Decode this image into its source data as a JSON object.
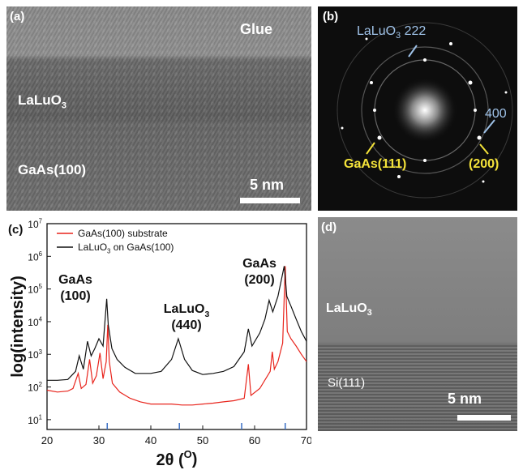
{
  "panel_a": {
    "tag": "(a)",
    "glue": "Glue",
    "layer": "LaLuO",
    "layer_sub": "3",
    "substrate": "GaAs(100)",
    "scale": "5 nm"
  },
  "panel_b": {
    "tag": "(b)",
    "lalu": "LaLuO",
    "lalu_sub": "3",
    "lalu_idx": "222",
    "i400": "400",
    "gaas111": "GaAs(111)",
    "i200": "(200)"
  },
  "panel_d": {
    "tag": "(d)",
    "layer": "LaLuO",
    "layer_sub": "3",
    "substrate": "Si(111)",
    "scale": "5 nm"
  },
  "chart_data": {
    "type": "line",
    "panel_label": "(c)",
    "xlabel": "2θ (",
    "xlabel_sup": "O",
    "xlabel_tail": ")",
    "ylabel": "log(intensity)",
    "xlim": [
      20,
      70
    ],
    "ylim": [
      5,
      10000000
    ],
    "yscale": "log",
    "xticks": [
      20,
      30,
      40,
      50,
      60,
      70
    ],
    "yticks": [
      {
        "base": "10",
        "exp": "1",
        "value": 10
      },
      {
        "base": "10",
        "exp": "2",
        "value": 100
      },
      {
        "base": "10",
        "exp": "3",
        "value": 1000
      },
      {
        "base": "10",
        "exp": "4",
        "value": 10000
      },
      {
        "base": "10",
        "exp": "5",
        "value": 100000
      },
      {
        "base": "10",
        "exp": "6",
        "value": 1000000
      },
      {
        "base": "10",
        "exp": "7",
        "value": 10000000
      }
    ],
    "legend_position": "top-left",
    "series": [
      {
        "name": "GaAs(100) substrate",
        "color": "#e8241c",
        "points": [
          [
            20,
            80
          ],
          [
            22,
            70
          ],
          [
            24,
            75
          ],
          [
            25,
            90
          ],
          [
            26,
            260
          ],
          [
            26.6,
            90
          ],
          [
            27.5,
            120
          ],
          [
            28.2,
            700
          ],
          [
            28.8,
            130
          ],
          [
            29.5,
            220
          ],
          [
            30.2,
            1100
          ],
          [
            30.8,
            180
          ],
          [
            31.4,
            600
          ],
          [
            31.7,
            8000
          ],
          [
            32,
            600
          ],
          [
            32.6,
            130
          ],
          [
            34,
            70
          ],
          [
            36,
            45
          ],
          [
            38,
            35
          ],
          [
            40,
            30
          ],
          [
            42,
            30
          ],
          [
            44,
            30
          ],
          [
            46,
            28
          ],
          [
            48,
            28
          ],
          [
            50,
            30
          ],
          [
            52,
            32
          ],
          [
            54,
            35
          ],
          [
            56,
            38
          ],
          [
            58,
            45
          ],
          [
            58.8,
            500
          ],
          [
            59.3,
            55
          ],
          [
            61,
            90
          ],
          [
            63,
            300
          ],
          [
            63.4,
            1200
          ],
          [
            63.8,
            350
          ],
          [
            64.5,
            600
          ],
          [
            65.4,
            2200
          ],
          [
            65.9,
            500000
          ],
          [
            66.3,
            5000
          ],
          [
            67,
            3000
          ],
          [
            68,
            1800
          ],
          [
            69,
            1000
          ],
          [
            70,
            600
          ]
        ]
      },
      {
        "name": "LaLuO",
        "name_sub": "3",
        "name_tail": " on GaAs(100)",
        "color": "#111111",
        "points": [
          [
            20,
            160
          ],
          [
            22,
            160
          ],
          [
            24,
            170
          ],
          [
            25.5,
            300
          ],
          [
            26.2,
            900
          ],
          [
            27,
            350
          ],
          [
            27.8,
            2500
          ],
          [
            28.5,
            900
          ],
          [
            29.2,
            1500
          ],
          [
            30,
            3000
          ],
          [
            30.8,
            1800
          ],
          [
            31.5,
            50000
          ],
          [
            31.8,
            8000
          ],
          [
            32.5,
            1500
          ],
          [
            33.5,
            700
          ],
          [
            35,
            400
          ],
          [
            37,
            260
          ],
          [
            40,
            260
          ],
          [
            42,
            300
          ],
          [
            44,
            700
          ],
          [
            45.3,
            3000
          ],
          [
            46.5,
            700
          ],
          [
            48,
            320
          ],
          [
            50,
            240
          ],
          [
            52,
            260
          ],
          [
            54,
            300
          ],
          [
            56,
            420
          ],
          [
            58,
            1200
          ],
          [
            58.8,
            6000
          ],
          [
            59.5,
            1800
          ],
          [
            61,
            4500
          ],
          [
            62,
            12000
          ],
          [
            62.8,
            45000
          ],
          [
            63.5,
            20000
          ],
          [
            64.5,
            60000
          ],
          [
            65.7,
            500000
          ],
          [
            66.2,
            60000
          ],
          [
            67,
            30000
          ],
          [
            68,
            12000
          ],
          [
            69,
            5000
          ],
          [
            70,
            2500
          ]
        ]
      }
    ],
    "annotations": [
      {
        "id": "gaas100",
        "line1": "GaAs",
        "line2": "(100)"
      },
      {
        "id": "laluo3",
        "line1": "LaLuO",
        "line1_sub": "3",
        "line2": "(440)"
      },
      {
        "id": "gaas200",
        "line1": "GaAs",
        "line2": "(200)"
      }
    ],
    "ref_ticks": [
      31.6,
      45.5,
      57.5,
      65.9
    ]
  }
}
